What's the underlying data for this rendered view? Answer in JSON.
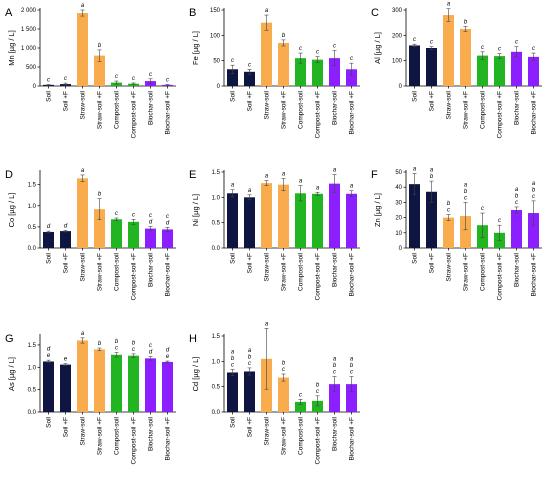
{
  "figure": {
    "colors": {
      "soil": "#0d1540",
      "straw": "#f9ac4d",
      "compost": "#22b522",
      "biochar": "#8c1fff",
      "axis": "#000000",
      "error": "#444444"
    },
    "categories": [
      "Soil",
      "Soil +F",
      "Straw-soil",
      "Straw-soil +F",
      "Compost-soil",
      "Compost-soil +F",
      "Biochar-soil",
      "Biochar-soil +F"
    ],
    "bar_groups": [
      "soil",
      "soil",
      "straw",
      "straw",
      "compost",
      "compost",
      "biochar",
      "biochar"
    ]
  },
  "chart_data": [
    {
      "type": "bar",
      "panel": "A",
      "title": "",
      "xlabel": "",
      "ylabel": "Mn [µg / L]",
      "ylim": [
        0,
        2000
      ],
      "yticks": [
        0,
        500,
        1000,
        1500,
        2000
      ],
      "ytick_labels": [
        "0",
        "500",
        "1 000",
        "1 500",
        "2 000"
      ],
      "categories": [
        "Soil",
        "Soil +F",
        "Straw-soil",
        "Straw-soil +F",
        "Compost-soil",
        "Compost-soil +F",
        "Biochar-soil",
        "Biochar-soil +F"
      ],
      "values": [
        30,
        50,
        1920,
        800,
        90,
        60,
        130,
        30
      ],
      "errors": [
        10,
        25,
        80,
        150,
        40,
        20,
        60,
        10
      ],
      "letters": [
        "c",
        "c",
        "a",
        "b",
        "c",
        "c",
        "c",
        "c"
      ]
    },
    {
      "type": "bar",
      "panel": "B",
      "title": "",
      "xlabel": "",
      "ylabel": "Fe [µg / L]",
      "ylim": [
        0,
        150
      ],
      "yticks": [
        0,
        50,
        100,
        150
      ],
      "ytick_labels": [
        "0",
        "50",
        "100",
        "150"
      ],
      "categories": [
        "Soil",
        "Soil +F",
        "Straw-soil",
        "Straw-soil +F",
        "Compost-soil",
        "Compost-soil +F",
        "Biochar-soil",
        "Biochar-soil +F"
      ],
      "values": [
        33,
        28,
        125,
        85,
        55,
        52,
        55,
        33
      ],
      "errors": [
        8,
        5,
        15,
        6,
        10,
        6,
        15,
        12
      ],
      "letters": [
        "c",
        "c",
        "a",
        "b",
        "c",
        "c",
        "c",
        "c"
      ]
    },
    {
      "type": "bar",
      "panel": "C",
      "title": "",
      "xlabel": "",
      "ylabel": "Al [µg / L]",
      "ylim": [
        0,
        300
      ],
      "yticks": [
        0,
        100,
        200,
        300
      ],
      "ytick_labels": [
        "0",
        "100",
        "200",
        "300"
      ],
      "categories": [
        "Soil",
        "Soil +F",
        "Straw-soil",
        "Straw-soil +F",
        "Compost-soil",
        "Compost-soil +F",
        "Biochar-soil",
        "Biochar-soil +F"
      ],
      "values": [
        160,
        150,
        280,
        225,
        120,
        118,
        135,
        115
      ],
      "errors": [
        5,
        5,
        25,
        10,
        15,
        10,
        20,
        15
      ],
      "letters": [
        "c",
        "c",
        "a",
        "b",
        "c",
        "c",
        "c",
        "c"
      ]
    },
    {
      "type": "bar",
      "panel": "D",
      "title": "",
      "xlabel": "",
      "ylabel": "Co [µg / L]",
      "ylim": [
        0,
        1.8
      ],
      "yticks": [
        0,
        0.5,
        1,
        1.5
      ],
      "ytick_labels": [
        "0.0",
        "0.5",
        "1.0",
        "1.5"
      ],
      "categories": [
        "Soil",
        "Soil +F",
        "Straw-soil",
        "Straw-soil +F",
        "Compost-soil",
        "Compost-soil +F",
        "Biochar-soil",
        "Biochar-soil +F"
      ],
      "values": [
        0.38,
        0.4,
        1.65,
        0.92,
        0.68,
        0.62,
        0.46,
        0.44
      ],
      "errors": [
        0.02,
        0.02,
        0.08,
        0.25,
        0.03,
        0.06,
        0.05,
        0.05
      ],
      "letters": [
        "d",
        "d",
        "a",
        "b",
        "c",
        "c",
        "c d",
        "c d"
      ]
    },
    {
      "type": "bar",
      "panel": "E",
      "title": "",
      "xlabel": "",
      "ylabel": "Ni [µg / L]",
      "ylim": [
        0,
        1.5
      ],
      "yticks": [
        0,
        0.5,
        1,
        1.5
      ],
      "ytick_labels": [
        "0.0",
        "0.5",
        "1.0",
        "1.5"
      ],
      "categories": [
        "Soil",
        "Soil +F",
        "Straw-soil",
        "Straw-soil +F",
        "Compost-soil",
        "Compost-soil +F",
        "Biochar-soil",
        "Biochar-soil +F"
      ],
      "values": [
        1.08,
        1.0,
        1.28,
        1.25,
        1.08,
        1.07,
        1.27,
        1.07
      ],
      "errors": [
        0.07,
        0.05,
        0.05,
        0.12,
        0.15,
        0.03,
        0.18,
        0.06
      ],
      "letters": [
        "a",
        "a",
        "a",
        "a",
        "a",
        "a",
        "a",
        "a"
      ]
    },
    {
      "type": "bar",
      "panel": "F",
      "title": "",
      "xlabel": "",
      "ylabel": "Zn [µg / L]",
      "ylim": [
        0,
        50
      ],
      "yticks": [
        0,
        10,
        20,
        30,
        40,
        50
      ],
      "ytick_labels": [
        "0",
        "10",
        "20",
        "30",
        "40",
        "50"
      ],
      "categories": [
        "Soil",
        "Soil +F",
        "Straw-soil",
        "Straw-soil +F",
        "Compost-soil",
        "Compost-soil +F",
        "Biochar-soil",
        "Biochar-soil +F"
      ],
      "values": [
        42,
        37,
        20,
        21,
        15,
        10,
        25,
        23
      ],
      "errors": [
        7,
        7,
        2,
        9,
        8,
        5,
        2,
        8
      ],
      "letters": [
        "a",
        "a b",
        "b c",
        "a b c",
        "c",
        "c",
        "a b c",
        "a b c"
      ]
    },
    {
      "type": "bar",
      "panel": "G",
      "title": "",
      "xlabel": "",
      "ylabel": "As [µg / L]",
      "ylim": [
        0,
        1.7
      ],
      "yticks": [
        0,
        0.5,
        1,
        1.5
      ],
      "ytick_labels": [
        "0.0",
        "0.5",
        "1.0",
        "1.5"
      ],
      "categories": [
        "Soil",
        "Soil +F",
        "Straw-soil",
        "Straw-soil +F",
        "Compost-soil",
        "Compost-soil +F",
        "Biochar-soil",
        "Biochar-soil +F"
      ],
      "values": [
        1.13,
        1.06,
        1.6,
        1.4,
        1.28,
        1.26,
        1.2,
        1.12
      ],
      "errors": [
        0.03,
        0.02,
        0.06,
        0.03,
        0.05,
        0.04,
        0.04,
        0.02
      ],
      "letters": [
        "d e",
        "e",
        "a",
        "b",
        "b c",
        "b c",
        "c d",
        "d e"
      ]
    },
    {
      "type": "bar",
      "panel": "H",
      "title": "",
      "xlabel": "",
      "ylabel": "Cd [µg / L]",
      "ylim": [
        0,
        1.5
      ],
      "yticks": [
        0,
        0.5,
        1,
        1.5
      ],
      "ytick_labels": [
        "0.0",
        "0.5",
        "1.0",
        "1.5"
      ],
      "categories": [
        "Soil",
        "Soil +F",
        "Straw-soil",
        "Straw-soil +F",
        "Compost-soil",
        "Compost-soil +F",
        "Biochar-soil",
        "Biochar-soil +F"
      ],
      "values": [
        0.78,
        0.8,
        1.05,
        0.68,
        0.2,
        0.22,
        0.55,
        0.55
      ],
      "errors": [
        0.06,
        0.07,
        0.6,
        0.07,
        0.05,
        0.1,
        0.15,
        0.15
      ],
      "letters": [
        "a b c",
        "a b c",
        "a",
        "b c",
        "c",
        "b c",
        "a b c",
        "a b c"
      ]
    }
  ]
}
